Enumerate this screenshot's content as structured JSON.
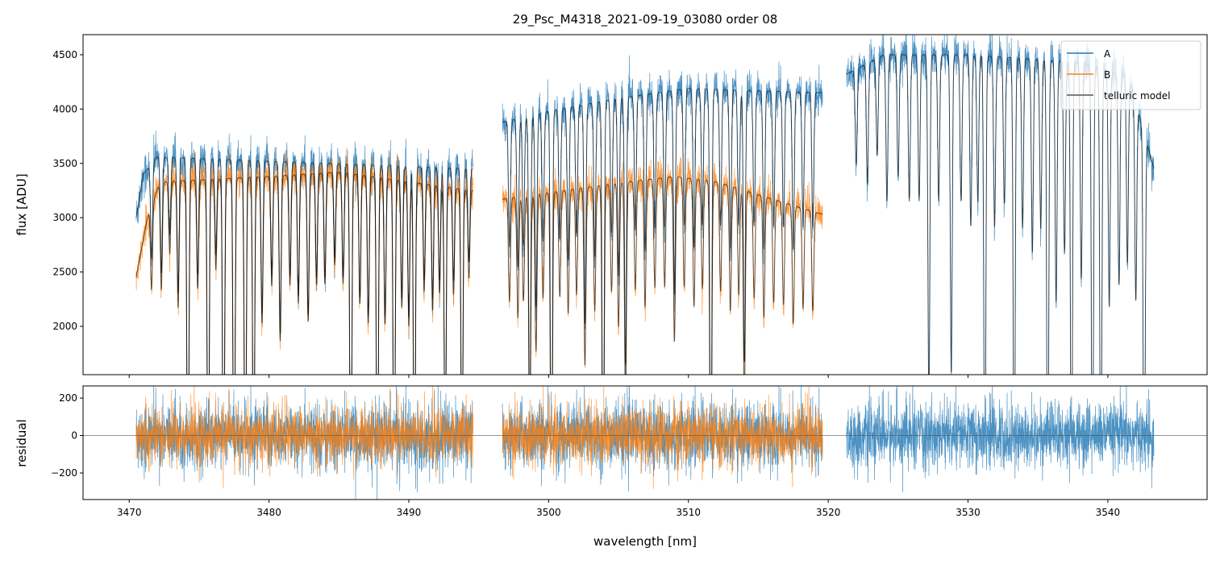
{
  "chart_data": {
    "type": "line",
    "title": "29_Psc_M4318_2021-09-19_03080  order 08",
    "xlabel": "wavelength [nm]",
    "xlim": [
      3466.7,
      3547.1
    ],
    "xticks": [
      3470,
      3480,
      3490,
      3500,
      3510,
      3520,
      3530,
      3540
    ],
    "panels": {
      "flux": {
        "ylabel": "flux [ADU]",
        "ylim": [
          1555,
          4685
        ],
        "yticks": [
          2000,
          2500,
          3000,
          3500,
          4000,
          4500
        ]
      },
      "residual": {
        "ylabel": "residual",
        "ylim": [
          -342,
          265
        ],
        "yticks": [
          -200,
          0,
          200
        ]
      }
    },
    "legend": {
      "placement": "top-right",
      "entries": [
        "A",
        "B",
        "telluric model"
      ]
    },
    "colors": {
      "A": "#1f77b4",
      "B": "#ff7f0e",
      "model": "#000000",
      "zero": "#555555"
    },
    "series": [
      {
        "name": "A",
        "noise_std": 85,
        "segments": [
          [
            [
              3470.5,
              3000
            ],
            [
              3471.0,
              3400
            ],
            [
              3472.0,
              3560
            ],
            [
              3480,
              3520
            ],
            [
              3494.6,
              3450
            ]
          ],
          [
            [
              3496.7,
              3880
            ],
            [
              3500,
              3980
            ],
            [
              3505,
              4100
            ],
            [
              3510,
              4190
            ],
            [
              3519.6,
              4150
            ]
          ],
          [
            [
              3521.3,
              4320
            ],
            [
              3524,
              4500
            ],
            [
              3530,
              4500
            ],
            [
              3538,
              4430
            ],
            [
              3541.5,
              4300
            ],
            [
              3543.3,
              3450
            ]
          ]
        ]
      },
      {
        "name": "B",
        "noise_std": 75,
        "segments": [
          [
            [
              3470.5,
              2450
            ],
            [
              3471.3,
              3000
            ],
            [
              3472.2,
              3330
            ],
            [
              3480,
              3380
            ],
            [
              3485,
              3420
            ],
            [
              3494.6,
              3250
            ]
          ],
          [
            [
              3496.7,
              3170
            ],
            [
              3505,
              3320
            ],
            [
              3509,
              3380
            ],
            [
              3512,
              3330
            ],
            [
              3519.6,
              3030
            ]
          ]
        ]
      }
    ],
    "telluric_lines": [
      [
        3471.6,
        0.25
      ],
      [
        3472.3,
        0.3
      ],
      [
        3472.9,
        0.2
      ],
      [
        3473.5,
        0.35
      ],
      [
        3474.2,
        0.98
      ],
      [
        3474.9,
        0.3
      ],
      [
        3475.65,
        0.99
      ],
      [
        3476.2,
        0.25
      ],
      [
        3476.75,
        0.99
      ],
      [
        3477.5,
        0.99
      ],
      [
        3478.3,
        0.97
      ],
      [
        3478.9,
        0.9
      ],
      [
        3479.5,
        0.4
      ],
      [
        3480.2,
        0.3
      ],
      [
        3480.8,
        0.45
      ],
      [
        3481.5,
        0.3
      ],
      [
        3482.1,
        0.35
      ],
      [
        3482.8,
        0.4
      ],
      [
        3483.4,
        0.3
      ],
      [
        3484.0,
        0.3
      ],
      [
        3484.7,
        0.25
      ],
      [
        3485.3,
        0.3
      ],
      [
        3485.85,
        0.97
      ],
      [
        3486.5,
        0.35
      ],
      [
        3487.1,
        0.4
      ],
      [
        3487.75,
        0.99
      ],
      [
        3488.3,
        0.4
      ],
      [
        3488.95,
        0.98
      ],
      [
        3489.5,
        0.35
      ],
      [
        3490.0,
        0.4
      ],
      [
        3490.4,
        0.95
      ],
      [
        3491.1,
        0.3
      ],
      [
        3491.7,
        0.35
      ],
      [
        3492.2,
        0.3
      ],
      [
        3492.6,
        0.8
      ],
      [
        3493.2,
        0.3
      ],
      [
        3493.8,
        0.85
      ],
      [
        3494.3,
        0.25
      ],
      [
        3497.2,
        0.3
      ],
      [
        3497.8,
        0.35
      ],
      [
        3498.2,
        0.3
      ],
      [
        3498.65,
        0.75
      ],
      [
        3499.1,
        0.45
      ],
      [
        3499.6,
        0.3
      ],
      [
        3500.2,
        0.99
      ],
      [
        3500.8,
        0.3
      ],
      [
        3501.4,
        0.35
      ],
      [
        3502.0,
        0.3
      ],
      [
        3502.6,
        0.5
      ],
      [
        3503.3,
        0.35
      ],
      [
        3503.9,
        0.99
      ],
      [
        3504.5,
        0.3
      ],
      [
        3505.0,
        0.4
      ],
      [
        3505.5,
        0.6
      ],
      [
        3506.2,
        0.3
      ],
      [
        3506.9,
        0.35
      ],
      [
        3507.6,
        0.3
      ],
      [
        3508.3,
        0.3
      ],
      [
        3509.0,
        0.45
      ],
      [
        3509.7,
        0.3
      ],
      [
        3510.4,
        0.35
      ],
      [
        3511.0,
        0.3
      ],
      [
        3511.6,
        0.99
      ],
      [
        3512.3,
        0.3
      ],
      [
        3513.0,
        0.35
      ],
      [
        3513.6,
        0.3
      ],
      [
        3514.0,
        0.6
      ],
      [
        3514.7,
        0.3
      ],
      [
        3515.4,
        0.35
      ],
      [
        3516.1,
        0.3
      ],
      [
        3516.8,
        0.3
      ],
      [
        3517.5,
        0.35
      ],
      [
        3518.2,
        0.3
      ],
      [
        3518.9,
        0.3
      ],
      [
        3522.0,
        0.2
      ],
      [
        3522.8,
        0.25
      ],
      [
        3523.5,
        0.2
      ],
      [
        3524.2,
        0.3
      ],
      [
        3525.0,
        0.25
      ],
      [
        3525.8,
        0.3
      ],
      [
        3526.5,
        0.3
      ],
      [
        3527.2,
        0.7
      ],
      [
        3527.9,
        0.3
      ],
      [
        3528.8,
        0.65
      ],
      [
        3529.5,
        0.3
      ],
      [
        3530.2,
        0.35
      ],
      [
        3530.7,
        0.3
      ],
      [
        3531.2,
        0.95
      ],
      [
        3531.9,
        0.35
      ],
      [
        3532.6,
        0.3
      ],
      [
        3533.3,
        0.95
      ],
      [
        3533.9,
        0.35
      ],
      [
        3534.6,
        0.4
      ],
      [
        3535.2,
        0.35
      ],
      [
        3535.7,
        0.99
      ],
      [
        3536.3,
        0.5
      ],
      [
        3536.9,
        0.4
      ],
      [
        3537.4,
        0.99
      ],
      [
        3538.1,
        0.45
      ],
      [
        3538.9,
        0.99
      ],
      [
        3539.5,
        0.97
      ],
      [
        3540.1,
        0.5
      ],
      [
        3540.8,
        0.45
      ],
      [
        3541.4,
        0.4
      ],
      [
        3542.0,
        0.45
      ],
      [
        3542.6,
        0.99
      ]
    ],
    "line_width_nm": 0.07
  }
}
